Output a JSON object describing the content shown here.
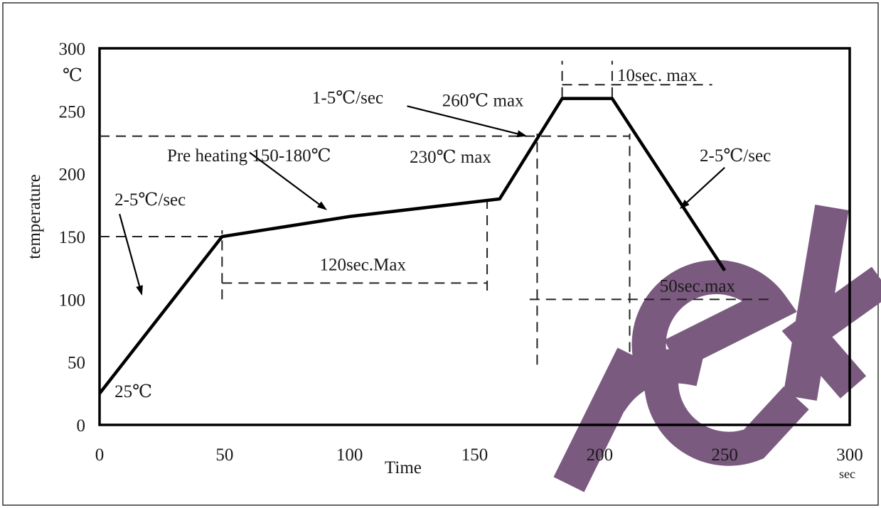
{
  "chart_data": {
    "type": "line",
    "title": "",
    "xlabel": "Time",
    "ylabel": "temperature",
    "x_unit": "sec",
    "y_unit": "℃",
    "xlim": [
      0,
      300
    ],
    "ylim": [
      0,
      300
    ],
    "x_ticks": [
      0,
      50,
      100,
      150,
      200,
      250,
      300
    ],
    "y_ticks": [
      0,
      50,
      100,
      150,
      200,
      250,
      300
    ],
    "grid": false,
    "series": [
      {
        "x": [
          0,
          49,
          100,
          160,
          185,
          205,
          250
        ],
        "y": [
          25,
          150,
          166,
          180,
          260,
          260,
          123
        ]
      }
    ],
    "reference_lines": [
      {
        "orientation": "horizontal",
        "y": 230,
        "x_range": [
          0,
          212
        ]
      },
      {
        "orientation": "horizontal",
        "y": 150,
        "x_range": [
          0,
          49
        ]
      },
      {
        "orientation": "horizontal",
        "y": 113,
        "x_range": [
          49,
          155
        ]
      },
      {
        "orientation": "horizontal",
        "y": 100,
        "x_range": [
          172,
          268
        ]
      },
      {
        "orientation": "horizontal",
        "y": 271,
        "x_range": [
          185,
          245
        ]
      },
      {
        "orientation": "vertical",
        "x": 49,
        "y_range": [
          100,
          155
        ]
      },
      {
        "orientation": "vertical",
        "x": 155,
        "y_range": [
          107,
          180
        ]
      },
      {
        "orientation": "vertical",
        "x": 175,
        "y_range": [
          48,
          232
        ]
      },
      {
        "orientation": "vertical",
        "x": 185,
        "y_range": [
          261,
          290
        ]
      },
      {
        "orientation": "vertical",
        "x": 205,
        "y_range": [
          261,
          290
        ]
      },
      {
        "orientation": "vertical",
        "x": 212,
        "y_range": [
          58,
          232
        ]
      }
    ],
    "annotations": [
      {
        "text": "25℃",
        "x": 6,
        "y": 22
      },
      {
        "text": "2-5℃/sec",
        "x": 6,
        "y": 175
      },
      {
        "text": "Pre heating 150-180℃",
        "x": 27,
        "y": 210
      },
      {
        "text": "120sec.Max",
        "x": 88,
        "y": 123
      },
      {
        "text": "1-5℃/sec",
        "x": 85,
        "y": 256
      },
      {
        "text": "260℃ max",
        "x": 137,
        "y": 254
      },
      {
        "text": "230℃ max",
        "x": 124,
        "y": 209
      },
      {
        "text": "10sec. max",
        "x": 207,
        "y": 274
      },
      {
        "text": "2-5℃/sec",
        "x": 240,
        "y": 210
      },
      {
        "text": "50sec.max",
        "x": 224,
        "y": 106
      }
    ],
    "arrows": [
      {
        "from": [
          8,
          168
        ],
        "to": [
          17,
          103
        ]
      },
      {
        "from": [
          60,
          217
        ],
        "to": [
          91,
          171
        ]
      },
      {
        "from": [
          123,
          254
        ],
        "to": [
          171,
          230
        ]
      },
      {
        "from": [
          250,
          205
        ],
        "to": [
          232,
          172
        ]
      }
    ]
  },
  "watermark": {
    "text": "rek",
    "color": "#7b5a80"
  }
}
